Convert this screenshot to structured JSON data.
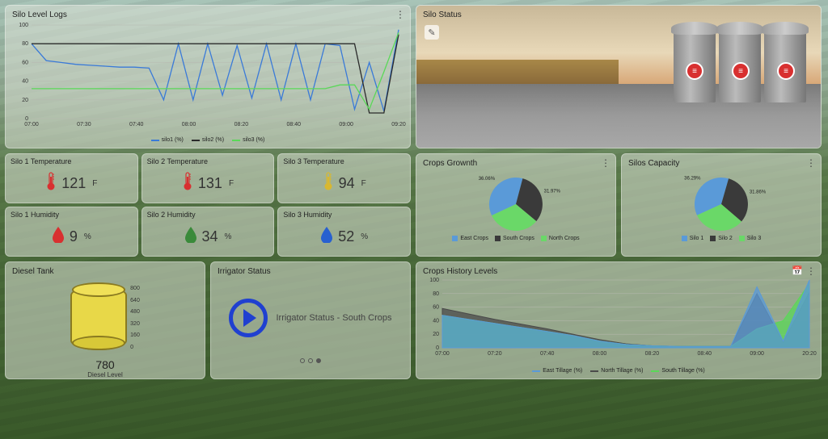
{
  "silo_logs": {
    "title": "Silo Level Logs",
    "type": "line",
    "ylim": [
      0,
      100
    ],
    "ytick_step": 20,
    "x_labels": [
      "07:00",
      "07:30",
      "07:40",
      "08:00",
      "08:20",
      "08:40",
      "09:00",
      "09:20"
    ],
    "series": {
      "silo1": {
        "label": "silo1 (%)",
        "color": "#3a7ad8",
        "values": [
          80,
          62,
          60,
          58,
          57,
          56,
          55,
          55,
          54,
          20,
          80,
          20,
          80,
          25,
          78,
          22,
          80,
          20,
          80,
          20,
          80,
          78,
          10,
          60,
          8,
          95
        ]
      },
      "silo2": {
        "label": "silo2 (%)",
        "color": "#2a2a2a",
        "values": [
          80,
          80,
          80,
          80,
          80,
          80,
          80,
          80,
          80,
          80,
          80,
          80,
          80,
          80,
          80,
          80,
          80,
          80,
          80,
          80,
          80,
          80,
          80,
          6,
          6,
          90
        ]
      },
      "silo3": {
        "label": "silo3 (%)",
        "color": "#5ad858",
        "values": [
          32,
          32,
          32,
          32,
          32,
          32,
          32,
          32,
          32,
          32,
          32,
          32,
          32,
          32,
          32,
          32,
          32,
          32,
          32,
          32,
          32,
          36,
          36,
          10,
          50,
          92
        ]
      }
    },
    "grid_color": "#b8b8b0",
    "background": "transparent"
  },
  "silo_status": {
    "title": "Silo Status",
    "markers": [
      {
        "name": "silo-1",
        "color": "#d83030"
      },
      {
        "name": "silo-2",
        "color": "#d83030"
      },
      {
        "name": "silo-3",
        "color": "#d83030"
      }
    ]
  },
  "temperatures": [
    {
      "title": "Silo 1 Temperature",
      "value": "121",
      "unit": "F",
      "icon_color": "#d83030"
    },
    {
      "title": "Silo 2 Temperature",
      "value": "131",
      "unit": "F",
      "icon_color": "#d83030"
    },
    {
      "title": "Silo 3 Temperature",
      "value": "94",
      "unit": "F",
      "icon_color": "#d8b830"
    }
  ],
  "humidity": [
    {
      "title": "Silo 1 Humidity",
      "value": "9",
      "unit": "%",
      "icon_color": "#d83030"
    },
    {
      "title": "Silo 2 Humidity",
      "value": "34",
      "unit": "%",
      "icon_color": "#3a8a3a"
    },
    {
      "title": "Silo 3 Humidity",
      "value": "52",
      "unit": "%",
      "icon_color": "#2860d0"
    }
  ],
  "crops_growth": {
    "title": "Crops Grownth",
    "type": "pie",
    "slices": [
      {
        "label": "East Crops",
        "value": 36.06,
        "color": "#5a9ad8"
      },
      {
        "label": "South Crops",
        "value": 31.97,
        "color": "#3a3a3a"
      },
      {
        "label": "North Crops",
        "value": 31.97,
        "color": "#6ad868"
      }
    ]
  },
  "silos_capacity": {
    "title": "Silos Capacity",
    "type": "pie",
    "slices": [
      {
        "label": "Silo 1",
        "value": 36.29,
        "color": "#5a9ad8"
      },
      {
        "label": "Silo 2",
        "value": 31.86,
        "color": "#3a3a3a"
      },
      {
        "label": "Silo 3",
        "value": 31.86,
        "color": "#6ad868"
      }
    ]
  },
  "diesel": {
    "title": "Diesel Tank",
    "value": "780",
    "label": "Diesel Level",
    "max": 800,
    "scale": [
      "800",
      "640",
      "480",
      "320",
      "160",
      "0"
    ],
    "fill_color": "#e8d848",
    "border_color": "#8a7a20"
  },
  "irrigator": {
    "title": "Irrigator Status",
    "text": "Irrigator Status - South Crops",
    "button_color": "#2040d0",
    "page_index": 2,
    "page_count": 3
  },
  "crop_history": {
    "title": "Crops History Levels",
    "type": "area",
    "ylim": [
      0,
      100
    ],
    "ytick_step": 20,
    "x_labels": [
      "07:00",
      "07:20",
      "07:40",
      "08:00",
      "08:20",
      "08:40",
      "09:00",
      "20:20"
    ],
    "series": {
      "east": {
        "label": "East Tillage (%)",
        "color": "#5a9ad8",
        "values": [
          48,
          42,
          36,
          30,
          24,
          18,
          10,
          5,
          3,
          2,
          2,
          2,
          90,
          10,
          100
        ]
      },
      "north": {
        "label": "North Tillage (%)",
        "color": "#4a4a4a",
        "values": [
          58,
          50,
          42,
          35,
          28,
          20,
          12,
          6,
          3,
          2,
          2,
          2,
          80,
          8,
          82
        ]
      },
      "south": {
        "label": "South Tillage (%)",
        "color": "#5ad858",
        "values": [
          48,
          42,
          36,
          30,
          24,
          18,
          10,
          5,
          3,
          2,
          2,
          2,
          28,
          40,
          95
        ]
      }
    },
    "grid_color": "#b8b8b0"
  }
}
